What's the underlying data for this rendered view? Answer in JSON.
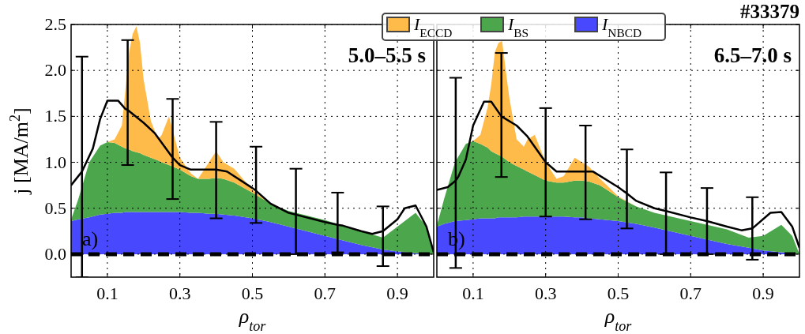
{
  "chart_data": [
    {
      "type": "area",
      "stacked": true,
      "xlabel": "ρ$_{tor}$",
      "ylabel": "j [MA/m$^{2}$]",
      "annotations": [
        "5.0–5.5 s",
        "a)"
      ],
      "xlim": [
        0,
        1
      ],
      "ylim": [
        -0.25,
        2.5
      ],
      "xticks": [
        0.1,
        0.3,
        0.5,
        0.7,
        0.9
      ],
      "yticks": [
        {
          "value": 0,
          "label": "0.0"
        },
        0.5,
        {
          "value": 1,
          "label": "1.0"
        },
        1.5,
        {
          "value": 2,
          "label": "2.0"
        },
        2.5
      ],
      "grid": true,
      "legend": false,
      "ref_lines": [
        {
          "axis": "y",
          "value": 0,
          "color": "#000000",
          "line_style": "dashed"
        }
      ],
      "x": [
        0,
        0.02,
        0.05,
        0.08,
        0.1,
        0.12,
        0.14,
        0.15,
        0.16,
        0.17,
        0.18,
        0.19,
        0.2,
        0.22,
        0.24,
        0.25,
        0.27,
        0.3,
        0.33,
        0.35,
        0.38,
        0.4,
        0.42,
        0.45,
        0.5,
        0.55,
        0.6,
        0.7,
        0.8,
        0.86,
        0.9,
        0.95,
        0.98,
        1.0
      ],
      "series": [
        {
          "color": "#4848ff",
          "values": [
            0.36,
            0.38,
            0.4,
            0.43,
            0.44,
            0.45,
            0.45,
            0.46,
            0.46,
            0.46,
            0.46,
            0.46,
            0.46,
            0.46,
            0.46,
            0.46,
            0.46,
            0.46,
            0.45,
            0.45,
            0.44,
            0.44,
            0.43,
            0.42,
            0.39,
            0.35,
            0.3,
            0.2,
            0.1,
            0.05,
            0.03,
            0.01,
            0,
            0
          ]
        },
        {
          "color": "#4ca64c",
          "values": [
            0.02,
            0.22,
            0.6,
            0.75,
            0.78,
            0.76,
            0.72,
            0.69,
            0.68,
            0.66,
            0.65,
            0.64,
            0.62,
            0.59,
            0.56,
            0.54,
            0.51,
            0.46,
            0.4,
            0.37,
            0.38,
            0.39,
            0.39,
            0.36,
            0.28,
            0.2,
            0.17,
            0.17,
            0.15,
            0.13,
            0.27,
            0.44,
            0.3,
            0
          ]
        },
        {
          "color": "#ffbb4a",
          "values": [
            0,
            0,
            0,
            0,
            0,
            0.04,
            0.23,
            0.65,
            1.06,
            1.28,
            1.37,
            1.2,
            0.82,
            0.4,
            0.23,
            0.3,
            0.53,
            0.13,
            0.03,
            0,
            0.18,
            0.29,
            0.18,
            0.15,
            0.03,
            0,
            0,
            0,
            0,
            0,
            0,
            0,
            0,
            0
          ]
        },
        {
          "type": "line",
          "color": "#000000",
          "x": [
            0,
            0.03,
            0.06,
            0.08,
            0.1,
            0.13,
            0.15,
            0.156,
            0.2,
            0.23,
            0.28,
            0.3,
            0.33,
            0.4,
            0.43,
            0.5,
            0.51,
            0.55,
            0.6,
            0.62,
            0.7,
            0.735,
            0.75,
            0.8,
            0.83,
            0.86,
            0.9,
            0.92,
            0.95,
            0.98,
            1.0
          ],
          "values": [
            0.75,
            0.9,
            1.15,
            1.47,
            1.67,
            1.67,
            1.58,
            1.57,
            1.43,
            1.32,
            1.05,
            0.97,
            0.92,
            0.92,
            0.9,
            0.72,
            0.69,
            0.55,
            0.45,
            0.43,
            0.35,
            0.32,
            0.31,
            0.25,
            0.22,
            0.25,
            0.38,
            0.5,
            0.53,
            0.3,
            0.02
          ],
          "errors": [
            null,
            [
              -0.25,
              2.15
            ],
            null,
            null,
            null,
            null,
            null,
            [
              0.97,
              2.33
            ],
            null,
            null,
            [
              0.6,
              1.69
            ],
            null,
            null,
            [
              0.39,
              1.44
            ],
            null,
            null,
            [
              0.34,
              1.17
            ],
            null,
            null,
            [
              0,
              0.93
            ],
            null,
            [
              0.02,
              0.67
            ],
            null,
            null,
            null,
            [
              -0.13,
              0.52
            ],
            null,
            null,
            null,
            null,
            null
          ]
        }
      ]
    },
    {
      "type": "area",
      "stacked": true,
      "xlabel": "ρ$_{tor}$",
      "annotations": [
        "6.5–7.0 s",
        "b)",
        "#33379"
      ],
      "xlim": [
        0,
        1
      ],
      "ylim": [
        -0.25,
        2.5
      ],
      "xticks": [
        0.1,
        0.3,
        0.5,
        0.7,
        0.9
      ],
      "yticks": [
        0,
        0.5,
        1,
        1.5,
        2,
        2.5
      ],
      "tick_labels": "x",
      "grid": true,
      "legend": "top left",
      "ref_lines": [
        {
          "axis": "y",
          "value": 0,
          "color": "#000000",
          "line_style": "dashed"
        }
      ],
      "x": [
        0,
        0.02,
        0.05,
        0.08,
        0.1,
        0.12,
        0.14,
        0.15,
        0.16,
        0.17,
        0.18,
        0.19,
        0.2,
        0.22,
        0.24,
        0.25,
        0.27,
        0.3,
        0.33,
        0.35,
        0.38,
        0.4,
        0.42,
        0.45,
        0.5,
        0.55,
        0.6,
        0.7,
        0.8,
        0.86,
        0.9,
        0.95,
        0.98,
        1.0
      ],
      "series": [
        {
          "name": "I$_{NBCD}$",
          "color": "#4848ff",
          "values": [
            0.3,
            0.33,
            0.36,
            0.37,
            0.38,
            0.39,
            0.39,
            0.39,
            0.39,
            0.4,
            0.4,
            0.4,
            0.4,
            0.4,
            0.41,
            0.41,
            0.41,
            0.41,
            0.41,
            0.41,
            0.4,
            0.4,
            0.39,
            0.38,
            0.36,
            0.33,
            0.29,
            0.2,
            0.11,
            0.07,
            0.04,
            0.02,
            0.01,
            0
          ]
        },
        {
          "name": "I$_{BS}$",
          "color": "#4ca64c",
          "values": [
            0.01,
            0.27,
            0.64,
            0.83,
            0.85,
            0.81,
            0.77,
            0.73,
            0.71,
            0.68,
            0.66,
            0.63,
            0.6,
            0.56,
            0.51,
            0.49,
            0.45,
            0.39,
            0.37,
            0.37,
            0.4,
            0.4,
            0.4,
            0.37,
            0.26,
            0.19,
            0.16,
            0.16,
            0.16,
            0.11,
            0.16,
            0.3,
            0.19,
            0
          ]
        },
        {
          "name": "I$_{ECCD}$",
          "color": "#ffbb4a",
          "values": [
            0,
            0,
            0,
            0,
            0,
            0.1,
            0.44,
            0.73,
            1.1,
            1.22,
            1.26,
            0.97,
            0.7,
            0.29,
            0.25,
            0.35,
            0.44,
            0.2,
            0.04,
            0.07,
            0.25,
            0.2,
            0.16,
            0.07,
            0.01,
            0,
            0,
            0,
            0,
            0,
            0,
            0,
            0,
            0
          ]
        },
        {
          "type": "line",
          "color": "#000000",
          "x": [
            0,
            0.03,
            0.052,
            0.06,
            0.08,
            0.1,
            0.13,
            0.15,
            0.178,
            0.22,
            0.25,
            0.3,
            0.33,
            0.4,
            0.41,
            0.43,
            0.5,
            0.524,
            0.55,
            0.6,
            0.632,
            0.7,
            0.745,
            0.8,
            0.84,
            0.87,
            0.92,
            0.95,
            0.98,
            1.0
          ],
          "values": [
            0.7,
            0.73,
            0.8,
            0.85,
            1.03,
            1.4,
            1.66,
            1.66,
            1.5,
            1.4,
            1.28,
            1.0,
            0.9,
            0.9,
            0.9,
            0.9,
            0.73,
            0.66,
            0.58,
            0.5,
            0.47,
            0.4,
            0.36,
            0.3,
            0.26,
            0.28,
            0.45,
            0.46,
            0.3,
            0.07
          ],
          "errors": [
            null,
            null,
            [
              -0.15,
              1.92
            ],
            null,
            null,
            null,
            null,
            null,
            [
              0.84,
              2.19
            ],
            null,
            null,
            [
              0.41,
              1.59
            ],
            null,
            null,
            [
              0.38,
              1.4
            ],
            null,
            null,
            [
              0.28,
              1.14
            ],
            null,
            null,
            [
              0,
              0.89
            ],
            null,
            [
              0,
              0.72
            ],
            null,
            null,
            [
              -0.06,
              0.62
            ],
            null,
            null,
            null,
            null
          ]
        }
      ]
    }
  ]
}
